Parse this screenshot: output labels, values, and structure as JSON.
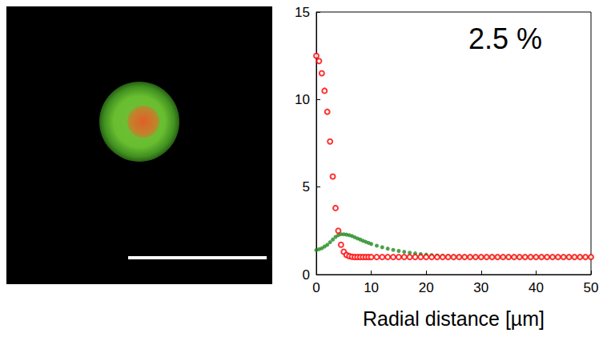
{
  "chart_data": {
    "type": "scatter",
    "annotation": "2.5 %",
    "xlabel": "Radial distance [µm]",
    "xlim": [
      0,
      50
    ],
    "xticks": [
      0,
      10,
      20,
      30,
      40,
      50
    ],
    "ylim": [
      0,
      15
    ],
    "yticks": [
      0,
      5,
      10,
      15
    ],
    "grid": false,
    "x": [
      0,
      0.5,
      1,
      1.5,
      2,
      2.5,
      3,
      3.5,
      4,
      4.5,
      5,
      5.5,
      6,
      6.5,
      7,
      7.5,
      8,
      8.5,
      9,
      9.5,
      10,
      11,
      12,
      13,
      14,
      15,
      16,
      17,
      18,
      19,
      20,
      21,
      22,
      23,
      24,
      25,
      26,
      27,
      28,
      29,
      30,
      31,
      32,
      33,
      34,
      35,
      36,
      37,
      38,
      39,
      40,
      41,
      42,
      43,
      44,
      45,
      46,
      47,
      48,
      49,
      50
    ],
    "series": [
      {
        "color": "#1f8a1f",
        "marker": "circle",
        "values": [
          1.4,
          1.45,
          1.5,
          1.6,
          1.7,
          1.85,
          2.0,
          2.15,
          2.25,
          2.3,
          2.3,
          2.28,
          2.25,
          2.2,
          2.13,
          2.06,
          2.0,
          1.93,
          1.87,
          1.81,
          1.75,
          1.65,
          1.56,
          1.48,
          1.41,
          1.35,
          1.3,
          1.25,
          1.21,
          1.17,
          1.14,
          1.11,
          1.09,
          1.07,
          1.05,
          1.04,
          1.03,
          1.02,
          1.02,
          1.01,
          1.0,
          1.0,
          1.0,
          1.0,
          1.0,
          1.0,
          1.0,
          1.0,
          1.0,
          1.0,
          1.0,
          1.0,
          1.0,
          1.0,
          1.0,
          1.0,
          1.0,
          1.0,
          1.0,
          1.0,
          1.0
        ]
      },
      {
        "color": "#ff0000",
        "marker": "open circle",
        "values": [
          12.5,
          12.2,
          11.5,
          10.5,
          9.3,
          7.6,
          5.6,
          3.8,
          2.5,
          1.7,
          1.3,
          1.12,
          1.05,
          1.02,
          1.0,
          1.0,
          1.0,
          1.0,
          1.0,
          1.0,
          1.0,
          1.0,
          1.0,
          1.0,
          1.0,
          1.0,
          1.0,
          1.0,
          1.0,
          1.0,
          1.0,
          1.0,
          1.0,
          1.0,
          1.0,
          1.0,
          1.0,
          1.0,
          1.0,
          1.0,
          1.0,
          1.0,
          1.0,
          1.0,
          1.0,
          1.0,
          1.0,
          1.0,
          1.0,
          1.0,
          1.0,
          1.0,
          1.0,
          1.0,
          1.0,
          1.0,
          1.0,
          1.0,
          1.0,
          1.0,
          1.0
        ]
      }
    ]
  }
}
